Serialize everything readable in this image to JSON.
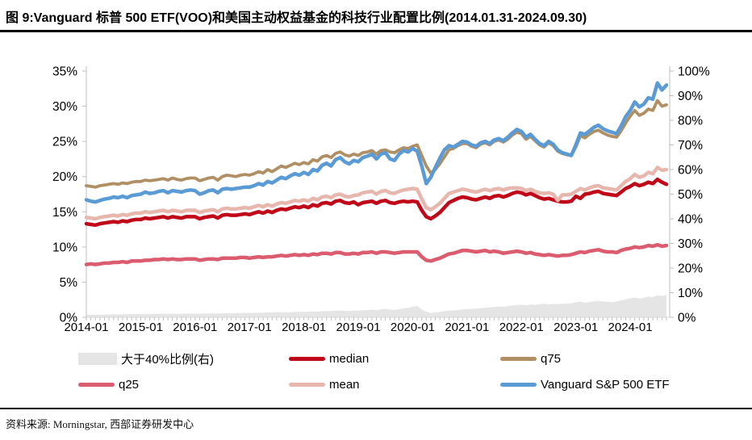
{
  "title": "图 9:Vanguard 标普 500 ETF(VOO)和美国主动权益基金的科技行业配置比例(2014.01.31-2024.09.30)",
  "source": "资料来源: Morningstar, 西部证券研发中心",
  "colors": {
    "axis_line": "#BFBFBF",
    "x_axis_line": "#D9D9D9",
    "text": "#000000",
    "title_rule": "#000000"
  },
  "chart_data": {
    "type": "line",
    "title": "Vanguard 标普 500 ETF(VOO)和美国主动权益基金的科技行业配置比例",
    "x_start": "2014-01",
    "x_end": "2024-09",
    "x_unit": "month",
    "x_tick_labels": [
      "2014-01",
      "2015-01",
      "2016-01",
      "2017-01",
      "2018-01",
      "2019-01",
      "2020-01",
      "2021-01",
      "2022-01",
      "2023-01",
      "2024-01"
    ],
    "left_axis": {
      "min": 0,
      "max": 35,
      "tick_step": 5,
      "tick_labels": [
        "0%",
        "5%",
        "10%",
        "15%",
        "20%",
        "25%",
        "30%",
        "35%"
      ]
    },
    "right_axis": {
      "min": 0,
      "max": 100,
      "tick_step": 10,
      "tick_labels": [
        "0%",
        "10%",
        "20%",
        "30%",
        "40%",
        "50%",
        "60%",
        "70%",
        "80%",
        "90%",
        "100%"
      ]
    },
    "grid": false,
    "legend_position": "bottom",
    "series": [
      {
        "id": "gt40-area",
        "name": "大于40%比例(右)",
        "type": "area",
        "axis": "right",
        "color": "#E5E5E5",
        "values": [
          1.0,
          1.0,
          1.1,
          1.0,
          1.1,
          1.1,
          1.2,
          1.1,
          1.2,
          1.2,
          1.3,
          1.3,
          1.3,
          1.4,
          1.3,
          1.4,
          1.4,
          1.5,
          1.4,
          1.5,
          1.4,
          1.4,
          1.5,
          1.5,
          1.5,
          1.4,
          1.5,
          1.5,
          1.6,
          1.5,
          1.6,
          1.7,
          1.6,
          1.7,
          1.7,
          1.8,
          1.8,
          1.8,
          1.9,
          1.9,
          2.0,
          2.0,
          2.1,
          2.1,
          2.0,
          2.1,
          2.2,
          2.2,
          2.2,
          2.3,
          2.4,
          2.3,
          2.5,
          2.6,
          2.5,
          2.7,
          2.8,
          2.6,
          2.6,
          2.7,
          2.7,
          2.9,
          3.0,
          3.1,
          2.9,
          3.2,
          3.4,
          3.1,
          3.0,
          3.3,
          3.6,
          3.8,
          4.3,
          4.6,
          3.2,
          2.2,
          1.8,
          2.0,
          2.2,
          2.5,
          2.7,
          2.8,
          3.0,
          3.2,
          3.3,
          3.4,
          3.5,
          3.7,
          3.9,
          4.0,
          4.2,
          4.4,
          4.3,
          4.5,
          4.8,
          5.0,
          5.1,
          4.9,
          5.2,
          5.0,
          5.3,
          5.5,
          5.2,
          5.4,
          5.3,
          5.5,
          5.6,
          5.7,
          6.2,
          6.4,
          5.9,
          6.1,
          6.5,
          6.7,
          6.4,
          6.3,
          6.2,
          6.4,
          6.9,
          7.3,
          7.7,
          8.0,
          7.6,
          7.9,
          8.4,
          8.2,
          8.9,
          8.6,
          9.1
        ]
      },
      {
        "id": "median",
        "name": "median",
        "type": "line",
        "axis": "left",
        "color": "#C00818",
        "values": [
          13.3,
          13.2,
          13.1,
          13.3,
          13.4,
          13.5,
          13.6,
          13.5,
          13.7,
          13.6,
          13.8,
          13.9,
          13.9,
          14.1,
          14.0,
          14.1,
          14.2,
          14.3,
          14.1,
          14.3,
          14.2,
          14.1,
          14.3,
          14.3,
          14.3,
          14.0,
          14.2,
          14.3,
          14.4,
          14.1,
          14.5,
          14.6,
          14.5,
          14.5,
          14.6,
          14.7,
          14.6,
          14.8,
          15.0,
          14.8,
          15.1,
          14.9,
          15.2,
          15.4,
          15.3,
          15.5,
          15.7,
          15.6,
          15.8,
          15.6,
          16.0,
          15.8,
          16.2,
          16.3,
          16.1,
          16.5,
          16.6,
          16.3,
          16.2,
          16.4,
          16.0,
          16.3,
          16.4,
          16.5,
          16.2,
          16.5,
          16.6,
          16.3,
          16.2,
          16.4,
          16.5,
          16.4,
          16.5,
          16.4,
          15.2,
          14.3,
          14.0,
          14.4,
          14.9,
          15.6,
          16.3,
          16.6,
          16.9,
          17.1,
          17.0,
          16.8,
          16.7,
          16.9,
          17.1,
          16.9,
          17.2,
          17.3,
          17.1,
          17.3,
          17.6,
          17.8,
          17.7,
          17.4,
          17.6,
          17.3,
          17.0,
          16.8,
          16.9,
          16.7,
          16.5,
          16.4,
          16.4,
          16.5,
          17.2,
          16.9,
          17.5,
          17.6,
          17.8,
          17.9,
          17.6,
          17.5,
          17.4,
          17.3,
          17.8,
          18.3,
          18.6,
          19.0,
          18.7,
          18.9,
          19.2,
          19.0,
          19.6,
          19.2,
          18.9
        ]
      },
      {
        "id": "q75",
        "name": "q75",
        "type": "line",
        "axis": "left",
        "color": "#AF8F63",
        "values": [
          18.7,
          18.6,
          18.5,
          18.7,
          18.8,
          18.9,
          19.0,
          18.9,
          19.1,
          19.0,
          19.2,
          19.3,
          19.3,
          19.5,
          19.4,
          19.5,
          19.6,
          19.7,
          19.5,
          19.8,
          19.6,
          19.5,
          19.7,
          19.8,
          19.8,
          19.4,
          19.6,
          19.8,
          19.9,
          19.5,
          20.0,
          20.2,
          20.1,
          20.0,
          20.2,
          20.3,
          20.2,
          20.4,
          20.7,
          20.5,
          21.0,
          20.7,
          21.1,
          21.5,
          21.3,
          21.6,
          21.9,
          21.7,
          22.0,
          21.8,
          22.4,
          22.2,
          22.8,
          23.0,
          22.7,
          23.3,
          23.5,
          23.1,
          22.9,
          23.2,
          23.0,
          23.4,
          23.5,
          23.7,
          23.2,
          23.7,
          23.8,
          23.5,
          23.4,
          23.8,
          24.1,
          24.0,
          24.3,
          24.5,
          23.0,
          21.5,
          20.5,
          21.0,
          21.8,
          22.8,
          23.8,
          24.0,
          24.4,
          24.7,
          24.7,
          24.3,
          24.1,
          24.6,
          24.8,
          24.5,
          25.0,
          25.2,
          24.9,
          25.3,
          25.9,
          26.3,
          26.1,
          25.3,
          25.7,
          25.1,
          24.5,
          24.2,
          24.8,
          24.4,
          23.6,
          23.3,
          23.1,
          23.0,
          24.2,
          25.8,
          25.5,
          26.0,
          26.4,
          26.6,
          26.2,
          25.9,
          25.7,
          25.6,
          26.5,
          27.6,
          28.6,
          29.4,
          28.7,
          29.0,
          29.6,
          29.4,
          30.8,
          30.0,
          30.2
        ]
      },
      {
        "id": "q25",
        "name": "q25",
        "type": "line",
        "axis": "left",
        "color": "#DB5C6E",
        "values": [
          7.5,
          7.6,
          7.5,
          7.6,
          7.7,
          7.7,
          7.8,
          7.8,
          7.9,
          7.8,
          8.0,
          8.0,
          8.0,
          8.1,
          8.1,
          8.2,
          8.2,
          8.3,
          8.2,
          8.3,
          8.2,
          8.2,
          8.3,
          8.3,
          8.3,
          8.1,
          8.2,
          8.3,
          8.3,
          8.2,
          8.4,
          8.4,
          8.4,
          8.4,
          8.5,
          8.5,
          8.4,
          8.5,
          8.6,
          8.5,
          8.6,
          8.6,
          8.7,
          8.8,
          8.7,
          8.8,
          8.9,
          8.8,
          8.9,
          8.8,
          9.0,
          8.9,
          9.1,
          9.1,
          9.0,
          9.2,
          9.2,
          9.0,
          9.0,
          9.1,
          9.0,
          9.2,
          9.2,
          9.3,
          9.1,
          9.3,
          9.3,
          9.2,
          9.1,
          9.2,
          9.3,
          9.3,
          9.3,
          9.3,
          8.6,
          8.1,
          8.0,
          8.2,
          8.4,
          8.7,
          9.0,
          9.1,
          9.3,
          9.5,
          9.5,
          9.4,
          9.3,
          9.4,
          9.5,
          9.3,
          9.4,
          9.3,
          9.1,
          9.2,
          9.3,
          9.4,
          9.3,
          9.1,
          9.2,
          9.0,
          8.9,
          8.8,
          8.9,
          8.8,
          8.7,
          8.8,
          8.8,
          8.9,
          9.1,
          9.3,
          9.2,
          9.4,
          9.5,
          9.6,
          9.4,
          9.3,
          9.3,
          9.2,
          9.5,
          9.7,
          9.8,
          10.0,
          9.9,
          10.0,
          10.2,
          10.1,
          10.3,
          10.1,
          10.2
        ]
      },
      {
        "id": "mean",
        "name": "mean",
        "type": "line",
        "axis": "left",
        "color": "#E7B7AE",
        "values": [
          14.2,
          14.1,
          14.0,
          14.2,
          14.3,
          14.4,
          14.5,
          14.4,
          14.6,
          14.5,
          14.7,
          14.8,
          14.8,
          15.0,
          14.9,
          15.0,
          15.1,
          15.2,
          15.0,
          15.2,
          15.1,
          15.0,
          15.2,
          15.2,
          15.2,
          14.9,
          15.1,
          15.2,
          15.3,
          15.0,
          15.4,
          15.5,
          15.4,
          15.4,
          15.5,
          15.6,
          15.5,
          15.7,
          15.9,
          15.7,
          16.0,
          15.8,
          16.1,
          16.3,
          16.2,
          16.4,
          16.6,
          16.5,
          16.7,
          16.5,
          16.9,
          16.7,
          17.1,
          17.2,
          17.0,
          17.4,
          17.5,
          17.2,
          17.1,
          17.3,
          17.4,
          17.7,
          17.8,
          17.9,
          17.5,
          17.9,
          18.0,
          17.7,
          17.6,
          17.9,
          18.1,
          18.2,
          18.3,
          18.2,
          16.8,
          15.6,
          15.3,
          15.7,
          16.2,
          16.9,
          17.6,
          17.8,
          18.0,
          18.2,
          18.1,
          17.9,
          17.8,
          18.0,
          18.2,
          18.0,
          18.2,
          18.3,
          18.1,
          18.3,
          18.4,
          18.4,
          18.3,
          18.0,
          18.2,
          17.9,
          17.7,
          17.6,
          17.7,
          17.5,
          16.6,
          17.4,
          17.4,
          17.5,
          17.9,
          18.3,
          18.1,
          18.4,
          18.6,
          18.7,
          18.4,
          18.3,
          18.2,
          18.1,
          18.7,
          19.3,
          19.7,
          20.3,
          19.9,
          20.1,
          20.6,
          20.4,
          21.3,
          20.9,
          21.0
        ]
      },
      {
        "id": "voo",
        "name": "Vanguard S&P 500 ETF",
        "type": "line",
        "axis": "left",
        "color": "#5B9BD5",
        "values": [
          16.7,
          16.5,
          16.4,
          16.6,
          16.8,
          16.9,
          17.1,
          17.0,
          17.2,
          17.0,
          17.3,
          17.4,
          17.5,
          17.8,
          17.6,
          17.7,
          17.9,
          18.0,
          17.7,
          18.0,
          17.9,
          17.8,
          18.0,
          18.1,
          18.0,
          17.5,
          17.7,
          18.0,
          18.1,
          17.7,
          18.2,
          18.3,
          18.2,
          18.3,
          18.4,
          18.5,
          18.5,
          18.7,
          19.0,
          18.8,
          19.3,
          19.1,
          19.5,
          19.9,
          19.7,
          20.1,
          20.4,
          20.2,
          20.6,
          20.3,
          21.0,
          20.8,
          21.6,
          21.9,
          21.5,
          22.4,
          22.7,
          22.1,
          21.8,
          22.3,
          22.1,
          22.7,
          22.9,
          23.2,
          22.5,
          23.2,
          23.4,
          22.5,
          22.3,
          23.2,
          23.7,
          23.5,
          24.0,
          23.6,
          21.5,
          19.0,
          19.9,
          21.3,
          22.6,
          23.8,
          24.4,
          24.2,
          24.6,
          25.0,
          24.9,
          24.5,
          24.3,
          24.8,
          25.0,
          24.7,
          25.2,
          25.4,
          25.1,
          25.6,
          26.2,
          26.7,
          26.4,
          25.6,
          26.0,
          25.3,
          24.7,
          24.4,
          25.0,
          24.6,
          23.8,
          23.4,
          23.2,
          23.0,
          24.5,
          26.2,
          26.0,
          26.5,
          27.0,
          27.3,
          26.8,
          26.5,
          26.3,
          26.1,
          27.2,
          28.5,
          29.4,
          30.6,
          29.9,
          30.3,
          31.2,
          31.0,
          33.3,
          32.3,
          33.0
        ]
      }
    ]
  }
}
